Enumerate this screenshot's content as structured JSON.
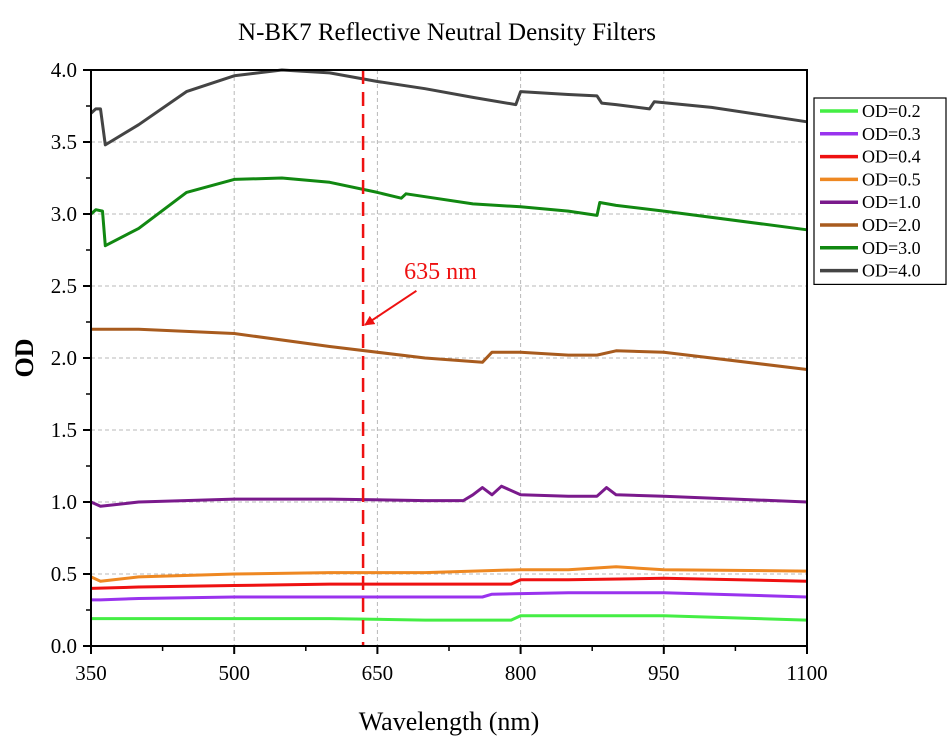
{
  "chart_data": {
    "type": "line",
    "title": "N-BK7 Reflective Neutral Density Filters",
    "xlabel": "Wavelength (nm)",
    "ylabel": "OD",
    "xlim": [
      350,
      1100
    ],
    "ylim": [
      0.0,
      4.0
    ],
    "xticks": [
      350,
      500,
      650,
      800,
      950,
      1100
    ],
    "xtick_labels": [
      "350",
      "500",
      "650",
      "800",
      "950",
      "1100"
    ],
    "yticks": [
      0.0,
      0.5,
      1.0,
      1.5,
      2.0,
      2.5,
      3.0,
      3.5,
      4.0
    ],
    "ytick_labels": [
      "0.0",
      "0.5",
      "1.0",
      "1.5",
      "2.0",
      "2.5",
      "3.0",
      "3.5",
      "4.0"
    ],
    "grid": true,
    "legend_position": "outside-right-top",
    "series": [
      {
        "name": "OD=0.2",
        "color": "#44ee44",
        "x": [
          350,
          400,
          500,
          600,
          700,
          790,
          800,
          850,
          950,
          1100
        ],
        "y": [
          0.19,
          0.19,
          0.19,
          0.19,
          0.18,
          0.18,
          0.21,
          0.21,
          0.21,
          0.18
        ]
      },
      {
        "name": "OD=0.3",
        "color": "#9933ee",
        "x": [
          350,
          360,
          400,
          500,
          600,
          700,
          760,
          770,
          850,
          950,
          1100
        ],
        "y": [
          0.32,
          0.32,
          0.33,
          0.34,
          0.34,
          0.34,
          0.34,
          0.36,
          0.37,
          0.37,
          0.34
        ]
      },
      {
        "name": "OD=0.4",
        "color": "#ee1111",
        "x": [
          350,
          400,
          500,
          600,
          700,
          790,
          800,
          850,
          950,
          1100
        ],
        "y": [
          0.4,
          0.41,
          0.42,
          0.43,
          0.43,
          0.43,
          0.46,
          0.46,
          0.47,
          0.45
        ]
      },
      {
        "name": "OD=0.5",
        "color": "#ee8822",
        "x": [
          350,
          360,
          400,
          500,
          600,
          700,
          800,
          850,
          900,
          950,
          1100
        ],
        "y": [
          0.48,
          0.45,
          0.48,
          0.5,
          0.51,
          0.51,
          0.53,
          0.53,
          0.55,
          0.53,
          0.52
        ]
      },
      {
        "name": "OD=1.0",
        "color": "#7a1a8c",
        "x": [
          350,
          360,
          400,
          500,
          600,
          700,
          740,
          750,
          760,
          770,
          780,
          800,
          850,
          870,
          880,
          890,
          900,
          950,
          1100
        ],
        "y": [
          1.0,
          0.97,
          1.0,
          1.02,
          1.02,
          1.01,
          1.01,
          1.05,
          1.1,
          1.05,
          1.11,
          1.05,
          1.04,
          1.04,
          1.04,
          1.1,
          1.05,
          1.04,
          1.0
        ]
      },
      {
        "name": "OD=2.0",
        "color": "#a85b1e",
        "x": [
          350,
          400,
          500,
          600,
          700,
          760,
          770,
          800,
          850,
          880,
          900,
          950,
          1100
        ],
        "y": [
          2.2,
          2.2,
          2.17,
          2.08,
          2.0,
          1.97,
          2.04,
          2.04,
          2.02,
          2.02,
          2.05,
          2.04,
          1.92
        ]
      },
      {
        "name": "OD=3.0",
        "color": "#118811",
        "x": [
          350,
          355,
          362,
          365,
          400,
          450,
          500,
          550,
          600,
          650,
          675,
          680,
          700,
          750,
          800,
          850,
          880,
          883,
          900,
          950,
          1100
        ],
        "y": [
          3.0,
          3.03,
          3.02,
          2.78,
          2.9,
          3.15,
          3.24,
          3.25,
          3.22,
          3.15,
          3.11,
          3.14,
          3.12,
          3.07,
          3.05,
          3.02,
          2.99,
          3.08,
          3.06,
          3.02,
          2.89
        ]
      },
      {
        "name": "OD=4.0",
        "color": "#444444",
        "x": [
          350,
          355,
          360,
          365,
          400,
          450,
          500,
          550,
          600,
          650,
          700,
          750,
          795,
          800,
          850,
          880,
          885,
          900,
          935,
          940,
          1000,
          1100
        ],
        "y": [
          3.7,
          3.73,
          3.73,
          3.48,
          3.62,
          3.85,
          3.96,
          4.0,
          3.98,
          3.92,
          3.87,
          3.81,
          3.76,
          3.85,
          3.83,
          3.82,
          3.77,
          3.76,
          3.73,
          3.78,
          3.74,
          3.64
        ]
      }
    ],
    "annotations": [
      {
        "type": "vline",
        "x": 635,
        "color": "#ee1111",
        "style": "dashed"
      },
      {
        "type": "arrow-label",
        "text": "635 nm",
        "color": "#ee1111",
        "label_x": 716,
        "label_y": 2.55,
        "target_x": 635,
        "target_y": 2.23
      }
    ]
  }
}
